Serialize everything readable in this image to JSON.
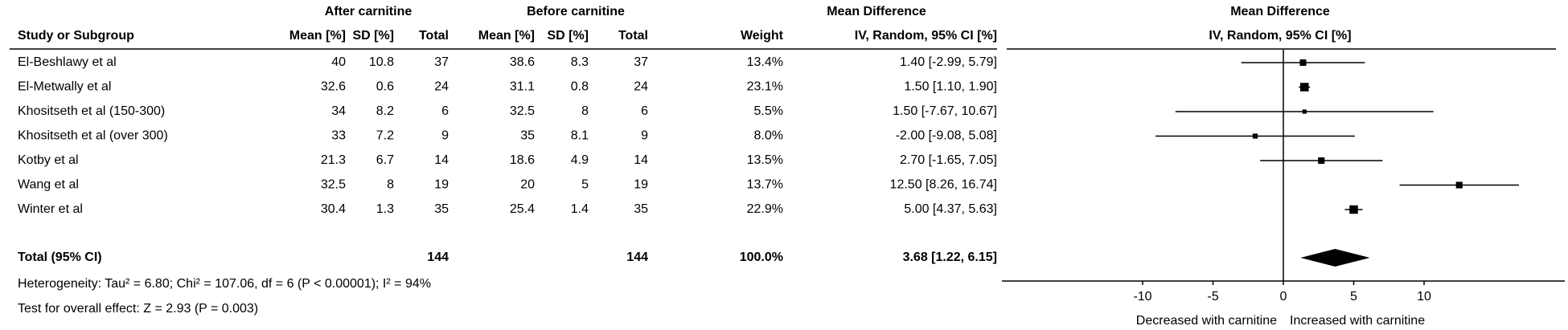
{
  "chart_data": {
    "type": "forest",
    "group_headers": [
      "After carnitine",
      "Before carnitine",
      "Mean Difference",
      "Mean Difference"
    ],
    "columns": [
      "Study or Subgroup",
      "Mean [%]",
      "SD [%]",
      "Total",
      "Mean [%]",
      "SD [%]",
      "Total",
      "Weight",
      "IV, Random, 95% CI [%]",
      "IV, Random, 95% CI [%]"
    ],
    "studies": [
      {
        "name": "El-Beshlawy et al",
        "after_mean": 40,
        "after_sd": 10.8,
        "after_total": 37,
        "before_mean": 38.6,
        "before_sd": 8.3,
        "before_total": 37,
        "weight": 13.4,
        "weight_label": "13.4%",
        "md": 1.4,
        "ci": [
          -2.99,
          5.79
        ],
        "md_label": "1.40 [-2.99, 5.79]"
      },
      {
        "name": "El-Metwally et al",
        "after_mean": 32.6,
        "after_sd": 0.6,
        "after_total": 24,
        "before_mean": 31.1,
        "before_sd": 0.8,
        "before_total": 24,
        "weight": 23.1,
        "weight_label": "23.1%",
        "md": 1.5,
        "ci": [
          1.1,
          1.9
        ],
        "md_label": "1.50 [1.10, 1.90]"
      },
      {
        "name": "Khositseth et al (150-300)",
        "after_mean": 34,
        "after_sd": 8.2,
        "after_total": 6,
        "before_mean": 32.5,
        "before_sd": 8,
        "before_total": 6,
        "weight": 5.5,
        "weight_label": "5.5%",
        "md": 1.5,
        "ci": [
          -7.67,
          10.67
        ],
        "md_label": "1.50 [-7.67, 10.67]"
      },
      {
        "name": "Khositseth et al (over 300)",
        "after_mean": 33,
        "after_sd": 7.2,
        "after_total": 9,
        "before_mean": 35,
        "before_sd": 8.1,
        "before_total": 9,
        "weight": 8.0,
        "weight_label": "8.0%",
        "md": -2.0,
        "ci": [
          -9.08,
          5.08
        ],
        "md_label": "-2.00 [-9.08, 5.08]"
      },
      {
        "name": "Kotby et al",
        "after_mean": 21.3,
        "after_sd": 6.7,
        "after_total": 14,
        "before_mean": 18.6,
        "before_sd": 4.9,
        "before_total": 14,
        "weight": 13.5,
        "weight_label": "13.5%",
        "md": 2.7,
        "ci": [
          -1.65,
          7.05
        ],
        "md_label": "2.70 [-1.65, 7.05]"
      },
      {
        "name": "Wang et al",
        "after_mean": 32.5,
        "after_sd": 8,
        "after_total": 19,
        "before_mean": 20,
        "before_sd": 5,
        "before_total": 19,
        "weight": 13.7,
        "weight_label": "13.7%",
        "md": 12.5,
        "ci": [
          8.26,
          16.74
        ],
        "md_label": "12.50 [8.26, 16.74]"
      },
      {
        "name": "Winter et al",
        "after_mean": 30.4,
        "after_sd": 1.3,
        "after_total": 35,
        "before_mean": 25.4,
        "before_sd": 1.4,
        "before_total": 35,
        "weight": 22.9,
        "weight_label": "22.9%",
        "md": 5.0,
        "ci": [
          4.37,
          5.63
        ],
        "md_label": "5.00 [4.37, 5.63]"
      }
    ],
    "total": {
      "name": "Total (95% CI)",
      "after_total": 144,
      "before_total": 144,
      "weight": 100.0,
      "weight_label": "100.0%",
      "md": 3.68,
      "ci": [
        1.22,
        6.15
      ],
      "md_label": "3.68 [1.22, 6.15]"
    },
    "heterogeneity": "Heterogeneity: Tau² = 6.80; Chi² = 107.06, df = 6 (P < 0.00001); I² = 94%",
    "overall_effect": "Test for overall effect: Z = 2.93 (P = 0.003)",
    "xlim": [
      -20,
      20
    ],
    "xticks": [
      -10,
      -5,
      0,
      5,
      10
    ],
    "x_labels": [
      "Decreased with carnitine",
      "Increased with carnitine"
    ]
  }
}
